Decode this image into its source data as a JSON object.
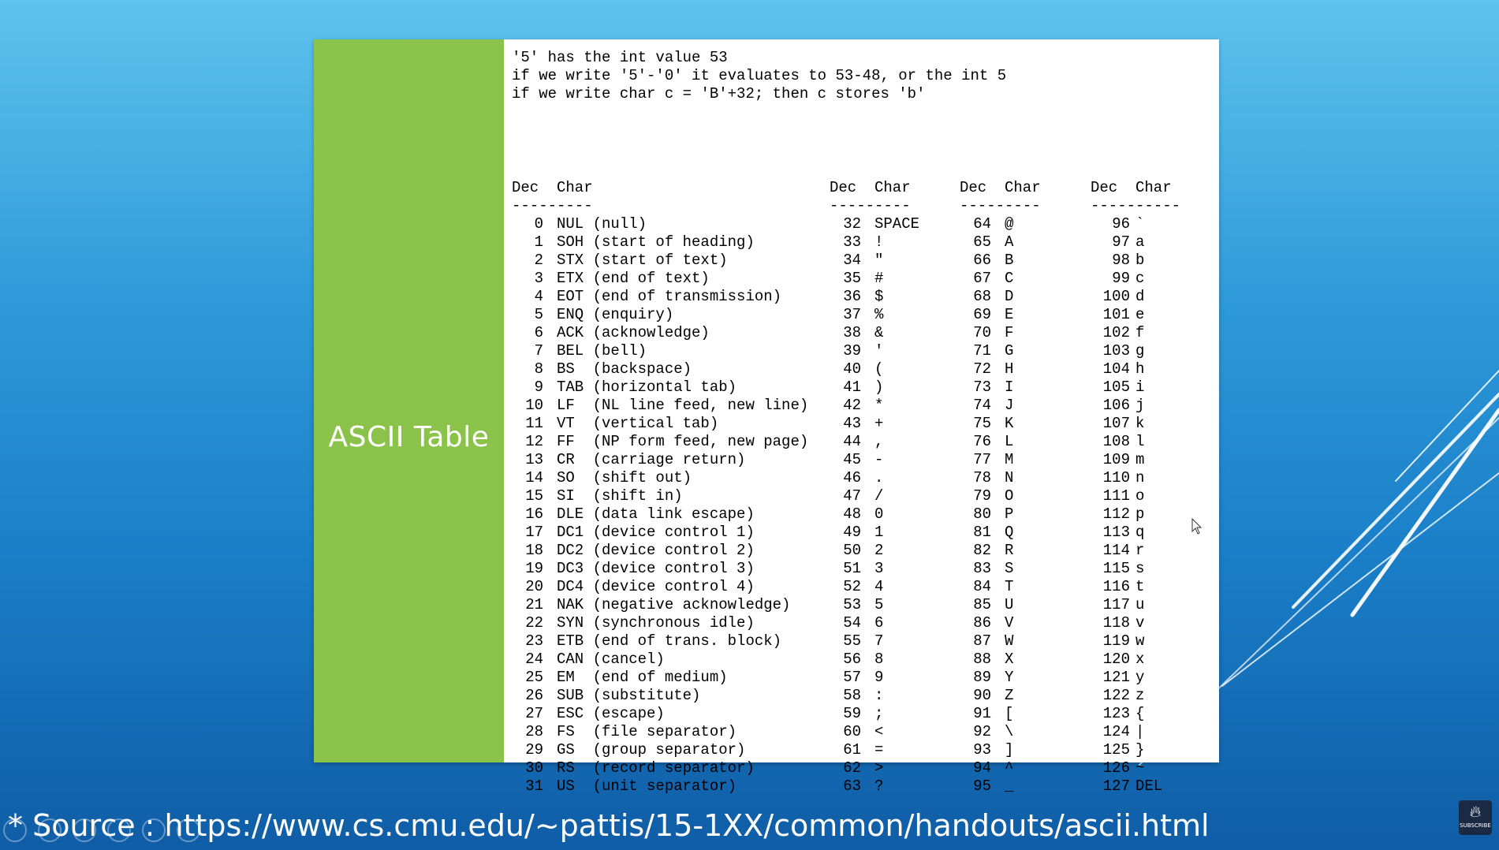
{
  "slide": {
    "title": "ASCII Table",
    "notes": [
      "'5' has the int value 53",
      "if we write '5'-'0' it evaluates to 53-48, or the int 5",
      "if we write char c = 'B'+32; then c stores 'b'"
    ]
  },
  "table": {
    "headers": [
      "Dec",
      "Char",
      "Dec",
      "Char",
      "Dec",
      "Char",
      "Dec",
      "Char"
    ],
    "dividers": [
      "---------",
      "---------",
      "---------",
      "----------"
    ],
    "rows": [
      [
        "0",
        "NUL (null)",
        "32",
        "SPACE",
        "64",
        "@",
        "96",
        "`"
      ],
      [
        "1",
        "SOH (start of heading)",
        "33",
        "!",
        "65",
        "A",
        "97",
        "a"
      ],
      [
        "2",
        "STX (start of text)",
        "34",
        "\"",
        "66",
        "B",
        "98",
        "b"
      ],
      [
        "3",
        "ETX (end of text)",
        "35",
        "#",
        "67",
        "C",
        "99",
        "c"
      ],
      [
        "4",
        "EOT (end of transmission)",
        "36",
        "$",
        "68",
        "D",
        "100",
        "d"
      ],
      [
        "5",
        "ENQ (enquiry)",
        "37",
        "%",
        "69",
        "E",
        "101",
        "e"
      ],
      [
        "6",
        "ACK (acknowledge)",
        "38",
        "&",
        "70",
        "F",
        "102",
        "f"
      ],
      [
        "7",
        "BEL (bell)",
        "39",
        "'",
        "71",
        "G",
        "103",
        "g"
      ],
      [
        "8",
        "BS  (backspace)",
        "40",
        "(",
        "72",
        "H",
        "104",
        "h"
      ],
      [
        "9",
        "TAB (horizontal tab)",
        "41",
        ")",
        "73",
        "I",
        "105",
        "i"
      ],
      [
        "10",
        "LF  (NL line feed, new line)",
        "42",
        "*",
        "74",
        "J",
        "106",
        "j"
      ],
      [
        "11",
        "VT  (vertical tab)",
        "43",
        "+",
        "75",
        "K",
        "107",
        "k"
      ],
      [
        "12",
        "FF  (NP form feed, new page)",
        "44",
        ",",
        "76",
        "L",
        "108",
        "l"
      ],
      [
        "13",
        "CR  (carriage return)",
        "45",
        "-",
        "77",
        "M",
        "109",
        "m"
      ],
      [
        "14",
        "SO  (shift out)",
        "46",
        ".",
        "78",
        "N",
        "110",
        "n"
      ],
      [
        "15",
        "SI  (shift in)",
        "47",
        "/",
        "79",
        "O",
        "111",
        "o"
      ],
      [
        "16",
        "DLE (data link escape)",
        "48",
        "0",
        "80",
        "P",
        "112",
        "p"
      ],
      [
        "17",
        "DC1 (device control 1)",
        "49",
        "1",
        "81",
        "Q",
        "113",
        "q"
      ],
      [
        "18",
        "DC2 (device control 2)",
        "50",
        "2",
        "82",
        "R",
        "114",
        "r"
      ],
      [
        "19",
        "DC3 (device control 3)",
        "51",
        "3",
        "83",
        "S",
        "115",
        "s"
      ],
      [
        "20",
        "DC4 (device control 4)",
        "52",
        "4",
        "84",
        "T",
        "116",
        "t"
      ],
      [
        "21",
        "NAK (negative acknowledge)",
        "53",
        "5",
        "85",
        "U",
        "117",
        "u"
      ],
      [
        "22",
        "SYN (synchronous idle)",
        "54",
        "6",
        "86",
        "V",
        "118",
        "v"
      ],
      [
        "23",
        "ETB (end of trans. block)",
        "55",
        "7",
        "87",
        "W",
        "119",
        "w"
      ],
      [
        "24",
        "CAN (cancel)",
        "56",
        "8",
        "88",
        "X",
        "120",
        "x"
      ],
      [
        "25",
        "EM  (end of medium)",
        "57",
        "9",
        "89",
        "Y",
        "121",
        "y"
      ],
      [
        "26",
        "SUB (substitute)",
        "58",
        ":",
        "90",
        "Z",
        "122",
        "z"
      ],
      [
        "27",
        "ESC (escape)",
        "59",
        ";",
        "91",
        "[",
        "123",
        "{"
      ],
      [
        "28",
        "FS  (file separator)",
        "60",
        "<",
        "92",
        "\\",
        "124",
        "|"
      ],
      [
        "29",
        "GS  (group separator)",
        "61",
        "=",
        "93",
        "]",
        "125",
        "}"
      ],
      [
        "30",
        "RS  (record separator)",
        "62",
        ">",
        "94",
        "^",
        "126",
        "~"
      ],
      [
        "31",
        "US  (unit separator)",
        "63",
        "?",
        "95",
        "_",
        "127",
        "DEL"
      ]
    ]
  },
  "footer": {
    "source": "* Source : https://www.cs.cmu.edu/~pattis/15-1XX/common/handouts/ascii.html"
  },
  "badge": {
    "label": "SUBSCRIBE"
  },
  "colors": {
    "green_panel": "#8bc34a",
    "background_top": "#5ec4ee",
    "background_bottom": "#0f5da6"
  }
}
